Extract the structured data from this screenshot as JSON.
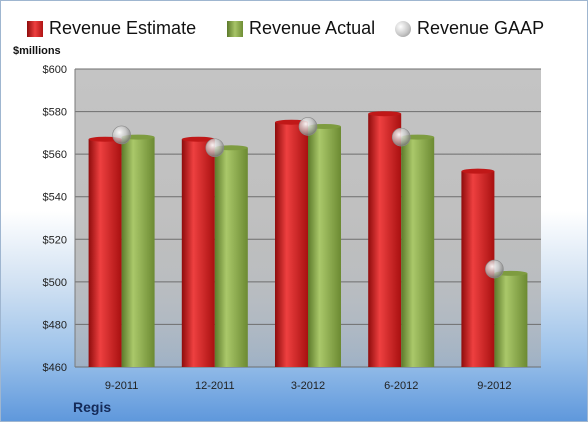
{
  "legend": {
    "estimate": "Revenue Estimate",
    "actual": "Revenue Actual",
    "gaap": "Revenue GAAP"
  },
  "unit_label": "$millions",
  "company": "Regis",
  "colors": {
    "estimate": "#d62222",
    "actual": "#8aa84a",
    "gaap": "#c4c4c4",
    "plot_bg": "#bdbdbd"
  },
  "chart_data": {
    "type": "bar",
    "categories": [
      "9-2011",
      "12-2011",
      "3-2012",
      "6-2012",
      "9-2012"
    ],
    "series": [
      {
        "name": "Revenue Estimate",
        "values": [
          567,
          567,
          575,
          579,
          552
        ]
      },
      {
        "name": "Revenue Actual",
        "values": [
          568,
          563,
          573,
          568,
          504
        ]
      },
      {
        "name": "Revenue GAAP",
        "values": [
          569,
          563,
          573,
          568,
          506
        ]
      }
    ],
    "ylabel": "$millions",
    "ylim": [
      460,
      600
    ],
    "yticks": [
      460,
      480,
      500,
      520,
      540,
      560,
      580,
      600
    ],
    "ytick_labels": [
      "$460",
      "$480",
      "$500",
      "$520",
      "$540",
      "$560",
      "$580",
      "$600"
    ],
    "grid": true,
    "legend_position": "top"
  }
}
